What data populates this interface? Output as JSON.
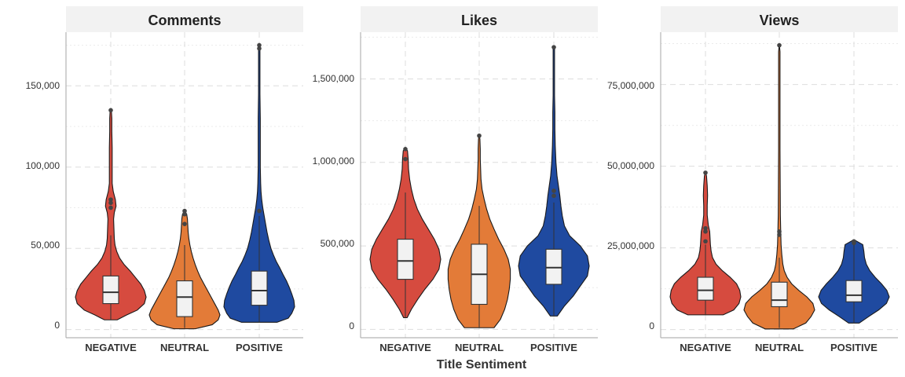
{
  "x_axis_title": "Title Sentiment",
  "colors": {
    "NEGATIVE": "#d64b3f",
    "NEUTRAL": "#e37b38",
    "POSITIVE": "#1f4aa0"
  },
  "chart_data": [
    {
      "type": "violin",
      "title": "Comments",
      "categories": [
        "NEGATIVE",
        "NEUTRAL",
        "POSITIVE"
      ],
      "ylim": [
        -5000,
        183000
      ],
      "yticks": [
        0,
        50000,
        100000,
        150000
      ],
      "ytick_labels": [
        "0",
        "50,000",
        "100,000",
        "150,000"
      ],
      "grid": true,
      "series": [
        {
          "category": "NEGATIVE",
          "box": {
            "min": 6000,
            "q1": 16000,
            "median": 23000,
            "q3": 33000,
            "max": 58000
          },
          "outliers": [
            75000,
            78000,
            80000,
            135000
          ],
          "violin_extent": [
            6000,
            136000
          ],
          "density": [
            [
              6000,
              0.18
            ],
            [
              9000,
              0.45
            ],
            [
              12000,
              0.75
            ],
            [
              16000,
              0.95
            ],
            [
              20000,
              1.0
            ],
            [
              24000,
              0.95
            ],
            [
              28000,
              0.85
            ],
            [
              32000,
              0.7
            ],
            [
              36000,
              0.55
            ],
            [
              40000,
              0.38
            ],
            [
              44000,
              0.25
            ],
            [
              48000,
              0.17
            ],
            [
              52000,
              0.12
            ],
            [
              56000,
              0.1
            ],
            [
              62000,
              0.09
            ],
            [
              68000,
              0.08
            ],
            [
              72000,
              0.1
            ],
            [
              76000,
              0.15
            ],
            [
              80000,
              0.13
            ],
            [
              85000,
              0.07
            ],
            [
              90000,
              0.04
            ],
            [
              100000,
              0.04
            ],
            [
              112000,
              0.04
            ],
            [
              122000,
              0.03
            ],
            [
              130000,
              0.03
            ],
            [
              134000,
              0.02
            ],
            [
              136000,
              0.0
            ]
          ]
        },
        {
          "category": "NEUTRAL",
          "box": {
            "min": 1000,
            "q1": 8000,
            "median": 20000,
            "q3": 30000,
            "max": 52000
          },
          "outliers": [
            65000,
            71000,
            73000
          ],
          "violin_extent": [
            500,
            73500
          ],
          "density": [
            [
              500,
              0.3
            ],
            [
              3000,
              0.78
            ],
            [
              6000,
              0.95
            ],
            [
              9000,
              1.0
            ],
            [
              12000,
              0.95
            ],
            [
              16000,
              0.85
            ],
            [
              20000,
              0.75
            ],
            [
              24000,
              0.65
            ],
            [
              28000,
              0.55
            ],
            [
              32000,
              0.45
            ],
            [
              36000,
              0.37
            ],
            [
              40000,
              0.3
            ],
            [
              44000,
              0.24
            ],
            [
              48000,
              0.19
            ],
            [
              52000,
              0.15
            ],
            [
              56000,
              0.12
            ],
            [
              60000,
              0.1
            ],
            [
              64000,
              0.09
            ],
            [
              68000,
              0.08
            ],
            [
              71000,
              0.06
            ],
            [
              73500,
              0.0
            ]
          ]
        },
        {
          "category": "POSITIVE",
          "box": {
            "min": 4500,
            "q1": 15000,
            "median": 24000,
            "q3": 36000,
            "max": 70000
          },
          "outliers": [
            73000,
            173000,
            175000
          ],
          "violin_extent": [
            4500,
            175500
          ],
          "density": [
            [
              4500,
              0.5
            ],
            [
              7000,
              0.82
            ],
            [
              10000,
              0.92
            ],
            [
              14000,
              1.0
            ],
            [
              18000,
              0.98
            ],
            [
              22000,
              0.92
            ],
            [
              26000,
              0.85
            ],
            [
              30000,
              0.77
            ],
            [
              34000,
              0.67
            ],
            [
              38000,
              0.58
            ],
            [
              42000,
              0.48
            ],
            [
              46000,
              0.4
            ],
            [
              50000,
              0.33
            ],
            [
              55000,
              0.27
            ],
            [
              60000,
              0.22
            ],
            [
              65000,
              0.18
            ],
            [
              70000,
              0.14
            ],
            [
              75000,
              0.1
            ],
            [
              80000,
              0.07
            ],
            [
              85000,
              0.05
            ],
            [
              90000,
              0.04
            ],
            [
              100000,
              0.03
            ],
            [
              115000,
              0.03
            ],
            [
              130000,
              0.03
            ],
            [
              145000,
              0.02
            ],
            [
              160000,
              0.02
            ],
            [
              170000,
              0.02
            ],
            [
              174000,
              0.02
            ],
            [
              175500,
              0.0
            ]
          ]
        }
      ]
    },
    {
      "type": "violin",
      "title": "Likes",
      "categories": [
        "NEGATIVE",
        "NEUTRAL",
        "POSITIVE"
      ],
      "ylim": [
        -50000,
        1780000
      ],
      "yticks": [
        0,
        500000,
        1000000,
        1500000
      ],
      "ytick_labels": [
        "0",
        "500,000",
        "1,000,000",
        "1,500,000"
      ],
      "grid": true,
      "series": [
        {
          "category": "NEGATIVE",
          "box": {
            "min": 70000,
            "q1": 300000,
            "median": 410000,
            "q3": 540000,
            "max": 820000
          },
          "outliers": [
            1020000,
            1080000
          ],
          "violin_extent": [
            70000,
            1090000
          ],
          "density": [
            [
              70000,
              0.05
            ],
            [
              120000,
              0.17
            ],
            [
              180000,
              0.35
            ],
            [
              240000,
              0.55
            ],
            [
              300000,
              0.78
            ],
            [
              360000,
              0.95
            ],
            [
              420000,
              1.0
            ],
            [
              480000,
              0.95
            ],
            [
              540000,
              0.82
            ],
            [
              600000,
              0.65
            ],
            [
              660000,
              0.48
            ],
            [
              720000,
              0.34
            ],
            [
              780000,
              0.24
            ],
            [
              840000,
              0.17
            ],
            [
              900000,
              0.12
            ],
            [
              960000,
              0.09
            ],
            [
              1020000,
              0.08
            ],
            [
              1070000,
              0.06
            ],
            [
              1090000,
              0.0
            ]
          ]
        },
        {
          "category": "NEUTRAL",
          "box": {
            "min": 10000,
            "q1": 150000,
            "median": 330000,
            "q3": 510000,
            "max": 740000
          },
          "outliers": [
            1160000
          ],
          "violin_extent": [
            10000,
            1170000
          ],
          "density": [
            [
              10000,
              0.42
            ],
            [
              60000,
              0.6
            ],
            [
              120000,
              0.72
            ],
            [
              180000,
              0.8
            ],
            [
              240000,
              0.85
            ],
            [
              300000,
              0.88
            ],
            [
              360000,
              0.88
            ],
            [
              420000,
              0.82
            ],
            [
              480000,
              0.7
            ],
            [
              540000,
              0.55
            ],
            [
              600000,
              0.42
            ],
            [
              660000,
              0.3
            ],
            [
              720000,
              0.21
            ],
            [
              780000,
              0.14
            ],
            [
              840000,
              0.08
            ],
            [
              900000,
              0.05
            ],
            [
              960000,
              0.04
            ],
            [
              1020000,
              0.03
            ],
            [
              1080000,
              0.03
            ],
            [
              1140000,
              0.02
            ],
            [
              1170000,
              0.0
            ]
          ]
        },
        {
          "category": "POSITIVE",
          "box": {
            "min": 80000,
            "q1": 270000,
            "median": 370000,
            "q3": 480000,
            "max": 760000
          },
          "outliers": [
            800000,
            830000,
            1690000
          ],
          "violin_extent": [
            80000,
            1700000
          ],
          "density": [
            [
              80000,
              0.1
            ],
            [
              140000,
              0.3
            ],
            [
              200000,
              0.55
            ],
            [
              260000,
              0.75
            ],
            [
              320000,
              0.95
            ],
            [
              380000,
              1.0
            ],
            [
              440000,
              0.95
            ],
            [
              500000,
              0.75
            ],
            [
              560000,
              0.45
            ],
            [
              620000,
              0.3
            ],
            [
              680000,
              0.24
            ],
            [
              740000,
              0.2
            ],
            [
              800000,
              0.17
            ],
            [
              860000,
              0.13
            ],
            [
              920000,
              0.09
            ],
            [
              1000000,
              0.06
            ],
            [
              1100000,
              0.04
            ],
            [
              1200000,
              0.03
            ],
            [
              1300000,
              0.03
            ],
            [
              1400000,
              0.02
            ],
            [
              1500000,
              0.02
            ],
            [
              1600000,
              0.02
            ],
            [
              1680000,
              0.02
            ],
            [
              1700000,
              0.0
            ]
          ]
        }
      ]
    },
    {
      "type": "violin",
      "title": "Views",
      "categories": [
        "NEGATIVE",
        "NEUTRAL",
        "POSITIVE"
      ],
      "ylim": [
        -2500000,
        91000000
      ],
      "yticks": [
        0,
        25000000,
        50000000,
        75000000
      ],
      "ytick_labels": [
        "0",
        "25,000,000",
        "50,000,000",
        "75,000,000"
      ],
      "grid": true,
      "series": [
        {
          "category": "NEGATIVE",
          "box": {
            "min": 4500000,
            "q1": 9000000,
            "median": 12000000,
            "q3": 16000000,
            "max": 26000000
          },
          "outliers": [
            27000000,
            30000000,
            31000000,
            48000000
          ],
          "violin_extent": [
            4500000,
            48500000
          ],
          "density": [
            [
              4500000,
              0.5
            ],
            [
              6000000,
              0.8
            ],
            [
              8000000,
              0.95
            ],
            [
              10000000,
              1.0
            ],
            [
              12000000,
              0.97
            ],
            [
              14000000,
              0.88
            ],
            [
              16000000,
              0.7
            ],
            [
              18000000,
              0.48
            ],
            [
              20000000,
              0.3
            ],
            [
              22000000,
              0.2
            ],
            [
              24000000,
              0.16
            ],
            [
              26000000,
              0.14
            ],
            [
              28000000,
              0.13
            ],
            [
              30000000,
              0.12
            ],
            [
              32000000,
              0.08
            ],
            [
              35000000,
              0.05
            ],
            [
              38000000,
              0.05
            ],
            [
              41000000,
              0.06
            ],
            [
              44000000,
              0.05
            ],
            [
              47000000,
              0.03
            ],
            [
              48500000,
              0.0
            ]
          ]
        },
        {
          "category": "NEUTRAL",
          "box": {
            "min": 500000,
            "q1": 7000000,
            "median": 9000000,
            "q3": 14500000,
            "max": 22000000
          },
          "outliers": [
            29000000,
            30000000,
            87000000
          ],
          "violin_extent": [
            200000,
            87500000
          ],
          "density": [
            [
              200000,
              0.4
            ],
            [
              2000000,
              0.75
            ],
            [
              4000000,
              0.9
            ],
            [
              6000000,
              1.0
            ],
            [
              8000000,
              0.95
            ],
            [
              10000000,
              0.78
            ],
            [
              12000000,
              0.55
            ],
            [
              14000000,
              0.35
            ],
            [
              16000000,
              0.22
            ],
            [
              18000000,
              0.14
            ],
            [
              20000000,
              0.1
            ],
            [
              23000000,
              0.07
            ],
            [
              26000000,
              0.05
            ],
            [
              30000000,
              0.04
            ],
            [
              35000000,
              0.03
            ],
            [
              45000000,
              0.025
            ],
            [
              55000000,
              0.02
            ],
            [
              65000000,
              0.02
            ],
            [
              75000000,
              0.02
            ],
            [
              85000000,
              0.02
            ],
            [
              87500000,
              0.0
            ]
          ]
        },
        {
          "category": "POSITIVE",
          "box": {
            "min": 2000000,
            "q1": 8500000,
            "median": 10500000,
            "q3": 15000000,
            "max": 26000000
          },
          "outliers": [
            26500000,
            27000000
          ],
          "violin_extent": [
            2000000,
            27500000
          ],
          "density": [
            [
              2000000,
              0.15
            ],
            [
              4000000,
              0.42
            ],
            [
              6000000,
              0.7
            ],
            [
              8000000,
              0.92
            ],
            [
              10000000,
              1.0
            ],
            [
              12000000,
              0.93
            ],
            [
              14000000,
              0.78
            ],
            [
              16000000,
              0.6
            ],
            [
              18000000,
              0.45
            ],
            [
              20000000,
              0.35
            ],
            [
              22000000,
              0.3
            ],
            [
              24000000,
              0.28
            ],
            [
              26000000,
              0.25
            ],
            [
              27500000,
              0.0
            ]
          ]
        }
      ]
    }
  ]
}
